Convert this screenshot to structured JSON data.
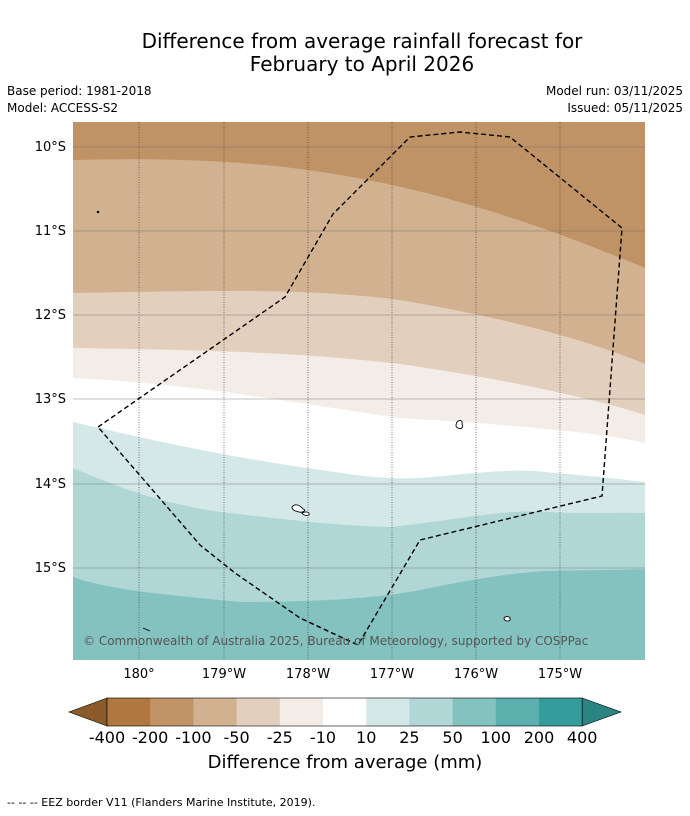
{
  "title": {
    "line1": "Difference from average rainfall forecast for",
    "line2": "February to April 2026"
  },
  "meta": {
    "base_period": "Base period: 1981-2018",
    "model": "Model: ACCESS-S2",
    "model_run": "Model run: 03/11/2025",
    "issued": "Issued: 05/11/2025"
  },
  "map": {
    "copyright": "© Commonwealth of Australia 2025, Bureau of Meteorology, supported by COSPPac",
    "lat_labels": [
      "10°S",
      "11°S",
      "12°S",
      "13°S",
      "14°S",
      "15°S"
    ],
    "lon_labels": [
      "180°",
      "179°W",
      "178°W",
      "177°W",
      "176°W",
      "175°W"
    ]
  },
  "colorbar": {
    "tick_labels": [
      "-400",
      "-200",
      "-100",
      "-50",
      "-25",
      "-10",
      "10",
      "25",
      "50",
      "100",
      "200",
      "400"
    ],
    "colors": [
      "#8a5a2b",
      "#b07840",
      "#c09366",
      "#d2b190",
      "#e3cfbd",
      "#f4ece6",
      "#ffffff",
      "#d5e8e8",
      "#b0d6d6",
      "#84c2c0",
      "#5bafad",
      "#349c9a",
      "#2a8482"
    ],
    "label": "Difference from average (mm)"
  },
  "footer": "--  --  -- EEZ border V11 (Flanders Marine Institute, 2019)."
}
